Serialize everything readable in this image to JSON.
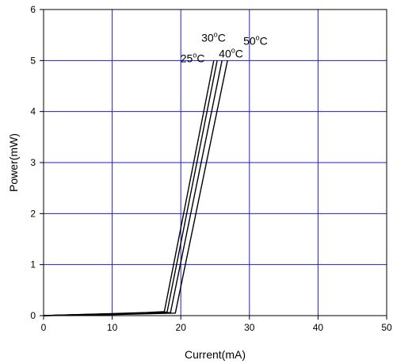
{
  "chart_data": {
    "type": "line",
    "xlabel": "Current(mA)",
    "ylabel": "Power(mW)",
    "xlim": [
      0,
      50
    ],
    "ylim": [
      0,
      6
    ],
    "x_ticks": [
      0,
      10,
      20,
      30,
      40,
      50
    ],
    "y_ticks": [
      0,
      1,
      2,
      3,
      4,
      5,
      6
    ],
    "grid": true,
    "grid_color": "#1f1fd0",
    "line_color": "#000000",
    "series": [
      {
        "name": "25°C",
        "label_parts": [
          "25",
          "o",
          "C"
        ],
        "x": [
          0,
          5,
          10,
          15,
          17.6,
          24.8
        ],
        "y": [
          0,
          0.02,
          0.04,
          0.06,
          0.08,
          5.0
        ]
      },
      {
        "name": "30°C",
        "label_parts": [
          "30",
          "o",
          "C"
        ],
        "x": [
          0,
          5,
          10,
          15,
          18.0,
          25.3
        ],
        "y": [
          0,
          0.02,
          0.035,
          0.055,
          0.07,
          5.0
        ]
      },
      {
        "name": "40°C",
        "label_parts": [
          "40",
          "o",
          "C"
        ],
        "x": [
          0,
          5,
          10,
          15,
          18.5,
          26.0
        ],
        "y": [
          0,
          0.015,
          0.03,
          0.045,
          0.06,
          5.0
        ]
      },
      {
        "name": "50°C",
        "label_parts": [
          "50",
          "o",
          "C"
        ],
        "x": [
          0,
          5,
          10,
          15,
          19.2,
          26.8
        ],
        "y": [
          0,
          0.01,
          0.02,
          0.035,
          0.05,
          5.0
        ]
      }
    ]
  }
}
